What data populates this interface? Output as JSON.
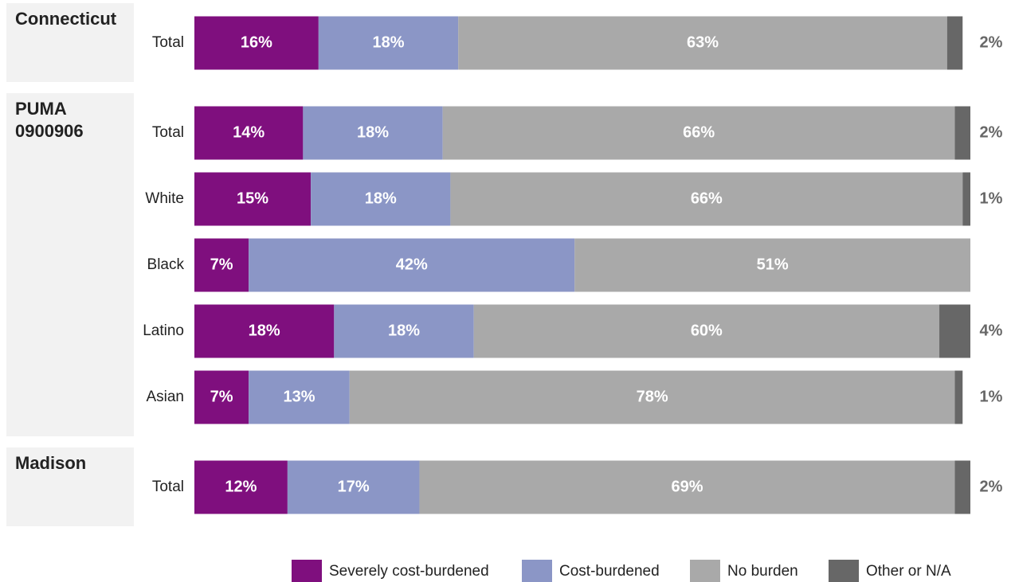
{
  "chart_data": {
    "type": "bar",
    "orientation": "horizontal",
    "stacked": true,
    "xlim": [
      0,
      100
    ],
    "groups": [
      {
        "name": "Connecticut",
        "categories": [
          "Total"
        ]
      },
      {
        "name": "PUMA 0900906",
        "categories": [
          "Total",
          "White",
          "Black",
          "Latino",
          "Asian"
        ]
      },
      {
        "name": "Madison",
        "categories": [
          "Total"
        ]
      }
    ],
    "series": [
      {
        "name": "Severely cost-burdened",
        "color": "#7f0f7e",
        "values": [
          16,
          14,
          15,
          7,
          18,
          7,
          12
        ],
        "value_labels": [
          "16%",
          "14%",
          "15%",
          "7%",
          "18%",
          "7%",
          "12%"
        ]
      },
      {
        "name": "Cost-burdened",
        "color": "#8b96c6",
        "values": [
          18,
          18,
          18,
          42,
          18,
          13,
          17
        ],
        "value_labels": [
          "18%",
          "18%",
          "18%",
          "42%",
          "18%",
          "13%",
          "17%"
        ]
      },
      {
        "name": "No burden",
        "color": "#a9a9a9",
        "values": [
          63,
          66,
          66,
          51,
          60,
          78,
          69
        ],
        "value_labels": [
          "63%",
          "66%",
          "66%",
          "51%",
          "60%",
          "78%",
          "69%"
        ]
      },
      {
        "name": "Other or N/A",
        "color": "#676767",
        "values": [
          2,
          2,
          1,
          null,
          4,
          1,
          2
        ],
        "value_labels": [
          "2%",
          "2%",
          "1%",
          null,
          "4%",
          "1%",
          "2%"
        ]
      }
    ],
    "legend": "bottom"
  }
}
